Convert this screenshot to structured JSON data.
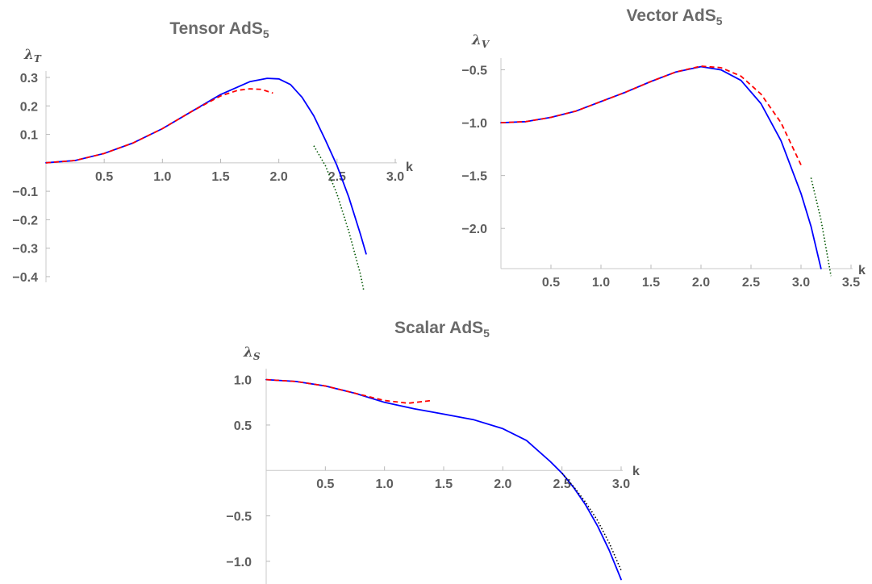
{
  "chart_data": [
    {
      "type": "line",
      "title": "Tensor AdS",
      "title_sub": "5",
      "ylabel": "λ",
      "ylabel_sub": "T",
      "xlabel": "k",
      "xlim": [
        0,
        3.0
      ],
      "ylim": [
        -0.42,
        0.3
      ],
      "x_ticks": [
        "0.5",
        "1.0",
        "1.5",
        "2.0",
        "2.5",
        "3.0"
      ],
      "y_ticks": [
        "0.3",
        "0.2",
        "0.1",
        "-0.1",
        "-0.2",
        "-0.3",
        "-0.4"
      ],
      "grid": false,
      "series": [
        {
          "style": "solid",
          "color": "#0000ff",
          "x": [
            0,
            0.25,
            0.5,
            0.75,
            1.0,
            1.25,
            1.5,
            1.75,
            1.9,
            2.0,
            2.1,
            2.2,
            2.3,
            2.4,
            2.5,
            2.6,
            2.7,
            2.75
          ],
          "y": [
            0,
            0.008,
            0.033,
            0.07,
            0.12,
            0.18,
            0.24,
            0.285,
            0.297,
            0.295,
            0.275,
            0.23,
            0.165,
            0.08,
            -0.01,
            -0.12,
            -0.25,
            -0.32
          ]
        },
        {
          "style": "dashed",
          "color": "#ff0000",
          "x": [
            0,
            0.25,
            0.5,
            0.75,
            1.0,
            1.25,
            1.5,
            1.65,
            1.75,
            1.85,
            1.95
          ],
          "y": [
            0,
            0.008,
            0.033,
            0.07,
            0.12,
            0.18,
            0.235,
            0.255,
            0.26,
            0.258,
            0.245
          ]
        },
        {
          "style": "dotted",
          "color": "#005500",
          "x": [
            2.3,
            2.4,
            2.5,
            2.6,
            2.7,
            2.73
          ],
          "y": [
            0.06,
            -0.01,
            -0.11,
            -0.24,
            -0.39,
            -0.45
          ]
        }
      ]
    },
    {
      "type": "line",
      "title": "Vector AdS",
      "title_sub": "5",
      "ylabel": "λ",
      "ylabel_sub": "V",
      "xlabel": "k",
      "xlim": [
        0,
        3.5
      ],
      "ylim": [
        -2.38,
        -0.45
      ],
      "x_ticks": [
        "0.5",
        "1.0",
        "1.5",
        "2.0",
        "2.5",
        "3.0",
        "3.5"
      ],
      "y_ticks": [
        "-0.5",
        "-1.0",
        "-1.5",
        "-2.0"
      ],
      "grid": false,
      "series": [
        {
          "style": "solid",
          "color": "#0000ff",
          "x": [
            0,
            0.25,
            0.5,
            0.75,
            1.0,
            1.25,
            1.5,
            1.75,
            2.0,
            2.2,
            2.4,
            2.6,
            2.8,
            3.0,
            3.1,
            3.2
          ],
          "y": [
            -1.0,
            -0.99,
            -0.95,
            -0.89,
            -0.8,
            -0.71,
            -0.61,
            -0.52,
            -0.47,
            -0.5,
            -0.6,
            -0.82,
            -1.17,
            -1.67,
            -1.98,
            -2.38
          ]
        },
        {
          "style": "dashed",
          "color": "#ff0000",
          "x": [
            0,
            0.25,
            0.5,
            0.75,
            1.0,
            1.25,
            1.5,
            1.75,
            2.0,
            2.2,
            2.4,
            2.6,
            2.8,
            3.0
          ],
          "y": [
            -1.0,
            -0.99,
            -0.95,
            -0.89,
            -0.8,
            -0.71,
            -0.61,
            -0.52,
            -0.465,
            -0.48,
            -0.56,
            -0.73,
            -1.0,
            -1.4
          ]
        },
        {
          "style": "dotted",
          "color": "#005500",
          "x": [
            3.1,
            3.2,
            3.3
          ],
          "y": [
            -1.52,
            -1.92,
            -2.45
          ]
        }
      ]
    },
    {
      "type": "line",
      "title": "Scalar AdS",
      "title_sub": "5",
      "ylabel": "λ",
      "ylabel_sub": "S",
      "xlabel": "k",
      "xlim": [
        0,
        3.0
      ],
      "ylim": [
        -1.25,
        1.05
      ],
      "x_ticks": [
        "0.5",
        "1.0",
        "1.5",
        "2.0",
        "2.5",
        "3.0"
      ],
      "y_ticks": [
        "1.0",
        "0.5",
        "-0.5",
        "-1.0"
      ],
      "grid": false,
      "series": [
        {
          "style": "solid",
          "color": "#0000ff",
          "x": [
            0,
            0.25,
            0.5,
            0.75,
            1.0,
            1.25,
            1.5,
            1.75,
            2.0,
            2.2,
            2.4,
            2.5,
            2.6,
            2.7,
            2.8,
            2.9,
            3.0
          ],
          "y": [
            1.0,
            0.98,
            0.93,
            0.85,
            0.75,
            0.68,
            0.62,
            0.56,
            0.46,
            0.33,
            0.1,
            -0.03,
            -0.19,
            -0.38,
            -0.61,
            -0.88,
            -1.2
          ]
        },
        {
          "style": "dashed",
          "color": "#ff0000",
          "x": [
            0,
            0.25,
            0.5,
            0.75,
            1.0,
            1.2,
            1.4
          ],
          "y": [
            1.0,
            0.98,
            0.93,
            0.85,
            0.77,
            0.74,
            0.77
          ]
        },
        {
          "style": "dotted",
          "color": "#000000",
          "x": [
            2.5,
            2.6,
            2.7,
            2.8,
            2.9,
            3.0
          ],
          "y": [
            -0.03,
            -0.18,
            -0.35,
            -0.55,
            -0.8,
            -1.1
          ]
        }
      ]
    }
  ]
}
